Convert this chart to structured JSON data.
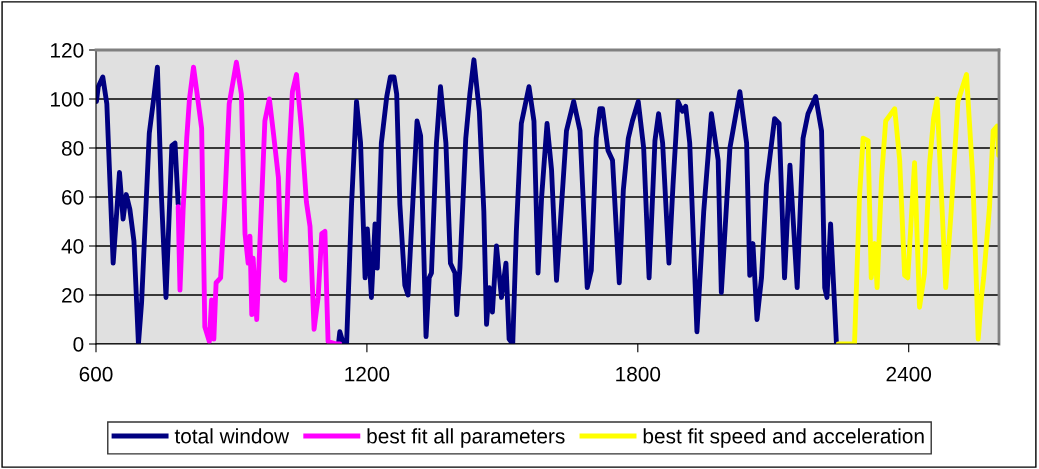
{
  "chart_data": {
    "type": "line",
    "xlim": [
      600,
      2600
    ],
    "xticks": [
      600,
      1200,
      1800,
      2400
    ],
    "ylim": [
      0,
      120
    ],
    "yticks": [
      0,
      20,
      40,
      60,
      80,
      100,
      120
    ],
    "grid": "y",
    "legend": "bottom",
    "marker": "none",
    "line_style": "solid",
    "series": [
      {
        "name": "total window",
        "color": "#000080",
        "x": [
          601,
          605,
          615,
          624,
          638,
          652,
          660,
          667,
          675,
          684,
          694,
          701,
          718,
          727,
          736,
          745,
          755,
          768,
          775,
          782,
          960,
          1137,
          1140,
          1148,
          1155,
          1166,
          1177,
          1186,
          1196,
          1201,
          1210,
          1218,
          1223,
          1232,
          1244,
          1252,
          1260,
          1266,
          1273,
          1284,
          1291,
          1299,
          1311,
          1319,
          1331,
          1338,
          1343,
          1354,
          1363,
          1375,
          1385,
          1395,
          1399,
          1406,
          1419,
          1428,
          1437,
          1449,
          1459,
          1465,
          1471,
          1478,
          1487,
          1498,
          1508,
          1515,
          1523,
          1531,
          1542,
          1559,
          1570,
          1579,
          1587,
          1599,
          1609,
          1620,
          1642,
          1658,
          1672,
          1688,
          1697,
          1708,
          1716,
          1722,
          1734,
          1744,
          1759,
          1768,
          1779,
          1788,
          1801,
          1813,
          1825,
          1838,
          1846,
          1855,
          1869,
          1878,
          1889,
          1899,
          1906,
          1915,
          1931,
          1946,
          1963,
          1978,
          1985,
          2004,
          2026,
          2041,
          2048,
          2055,
          2064,
          2074,
          2085,
          2103,
          2113,
          2125,
          2137,
          2153,
          2166,
          2177,
          2194,
          2207,
          2214,
          2219,
          2227,
          2240
        ],
        "values": [
          99,
          105,
          109,
          98,
          33,
          70,
          51,
          61,
          55,
          42,
          0,
          17,
          86,
          99,
          113,
          60,
          19,
          81,
          82,
          57,
          null,
          0,
          5,
          0,
          0,
          57,
          99,
          82,
          27,
          47,
          19,
          49,
          31,
          82,
          101,
          109,
          109,
          102,
          57,
          24,
          20,
          48,
          91,
          85,
          3,
          27,
          29,
          82,
          105,
          82,
          33,
          29,
          12,
          31,
          84,
          102,
          116,
          95,
          54,
          8,
          23,
          13,
          40,
          19,
          33,
          2,
          0,
          46,
          90,
          105,
          91,
          29,
          60,
          90,
          71,
          26,
          87,
          99,
          87,
          23,
          30,
          84,
          96,
          96,
          79,
          75,
          25,
          63,
          84,
          91,
          99,
          80,
          27,
          83,
          94,
          82,
          33,
          65,
          99,
          95,
          97,
          82,
          5,
          54,
          94,
          75,
          21,
          80,
          103,
          82,
          28,
          41,
          10,
          27,
          65,
          92,
          90,
          27,
          73,
          23,
          84,
          94,
          101,
          87,
          23,
          19,
          49,
          0
        ]
      },
      {
        "name": "best fit all parameters",
        "color": "#ff00ff",
        "x": [
          782,
          786,
          793,
          801,
          807,
          816,
          824,
          834,
          841,
          851,
          856,
          861,
          866,
          876,
          886,
          895,
          911,
          922,
          930,
          937,
          941,
          945,
          948,
          956,
          963,
          974,
          984,
          993,
          1004,
          1011,
          1018,
          1027,
          1035,
          1044,
          1055,
          1066,
          1074,
          1083,
          1092,
          1100,
          1107,
          1114,
          1133,
          1140
        ],
        "values": [
          56,
          22,
          55,
          84,
          100,
          113,
          102,
          88,
          7,
          1,
          18,
          2,
          25,
          27,
          61,
          98,
          115,
          102,
          45,
          33,
          44,
          12,
          35,
          10,
          41,
          91,
          100,
          86,
          68,
          27,
          26,
          75,
          103,
          110,
          88,
          58,
          48,
          6,
          19,
          45,
          46,
          1,
          0,
          0
        ]
      },
      {
        "name": "best fit speed and acceleration",
        "color": "#ffff00",
        "x": [
          2244,
          2247,
          2280,
          2291,
          2299,
          2310,
          2317,
          2325,
          2330,
          2340,
          2349,
          2369,
          2380,
          2391,
          2398,
          2413,
          2424,
          2435,
          2446,
          2455,
          2463,
          2469,
          2482,
          2494,
          2509,
          2528,
          2542,
          2554,
          2561,
          2566,
          2579,
          2587,
          2596,
          2599
        ],
        "values": [
          0,
          0,
          0,
          60,
          84,
          83,
          27,
          41,
          23,
          68,
          91,
          96,
          75,
          28,
          27,
          74,
          15,
          29,
          73,
          92,
          100,
          75,
          23,
          54,
          99,
          110,
          68,
          2,
          19,
          27,
          56,
          87,
          89,
          77
        ]
      }
    ]
  }
}
